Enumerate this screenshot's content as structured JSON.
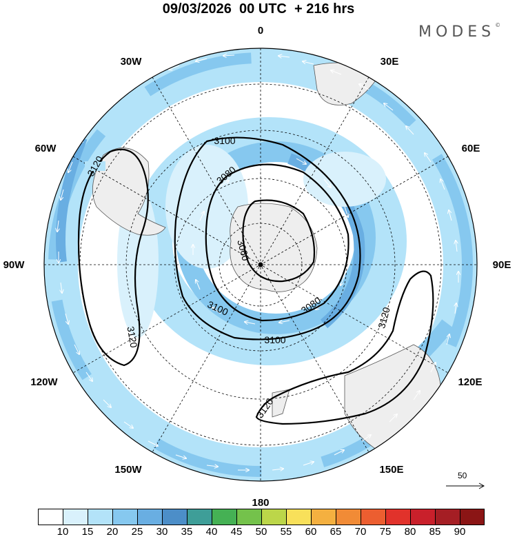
{
  "title": "09/03/2026  00 UTC  + 216 hrs",
  "brand": {
    "name": "MODES",
    "mark": "©"
  },
  "map": {
    "projection": "south-polar-stereographic",
    "longitude_labels": {
      "top": "0",
      "upper_right": "30E",
      "right_upper": "60E",
      "right": "90E",
      "right_lower": "120E",
      "lower_right": "150E",
      "bottom": "180",
      "lower_left": "150W",
      "left_lower": "120W",
      "left": "90W",
      "left_upper": "60W",
      "upper_left": "30W"
    },
    "contour_labels": {
      "c3120_west": "3120",
      "c3120_west_low": "3120",
      "c3100_top": "3100",
      "c3080_top": "3080",
      "c3060": "3060",
      "c3100_left": "3100",
      "c3080_low": "3080",
      "c3100_low": "3100",
      "c3120_east": "3120",
      "c3120_south": "3120"
    },
    "reference_vector": "50"
  },
  "colorbar": {
    "colors": [
      "#ffffff",
      "#d9f1fc",
      "#b3e3f9",
      "#86c8ef",
      "#69aee2",
      "#4c8ec8",
      "#3e9e98",
      "#45b154",
      "#74c24b",
      "#bcd649",
      "#f8e05a",
      "#f4b040",
      "#f18b36",
      "#ec5e30",
      "#e1322b",
      "#c9202b",
      "#a51e24",
      "#8b1515"
    ],
    "ticks": [
      "10",
      "15",
      "20",
      "25",
      "30",
      "35",
      "40",
      "45",
      "50",
      "55",
      "60",
      "65",
      "70",
      "75",
      "80",
      "85",
      "90"
    ]
  }
}
